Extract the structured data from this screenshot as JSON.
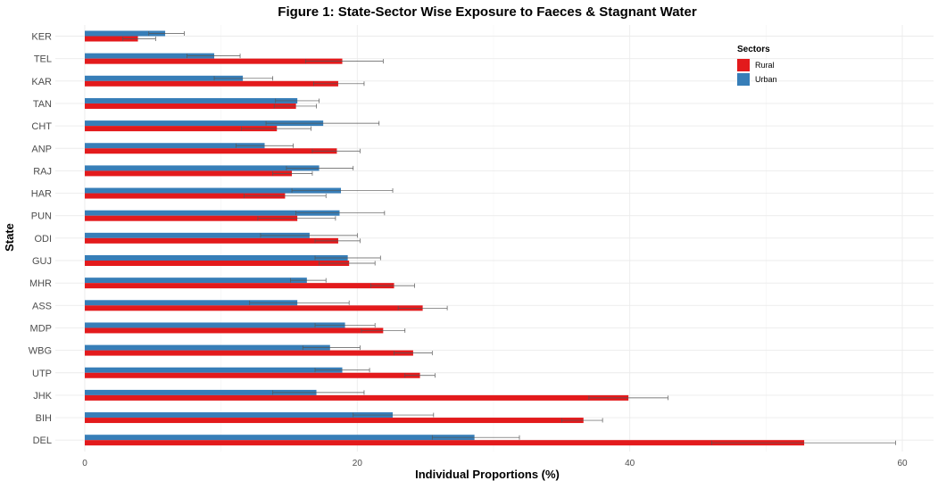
{
  "chart_data": {
    "type": "bar",
    "orientation": "horizontal",
    "title": "Figure 1: State-Sector Wise Exposure to Faeces & Stagnant Water",
    "xlabel": "Individual Proportions (%)",
    "ylabel": "State",
    "xlim": [
      0,
      62
    ],
    "x_ticks": [
      "0",
      "20",
      "40",
      "60"
    ],
    "x_tick_values": [
      0,
      20,
      40,
      60
    ],
    "grid": true,
    "legend": {
      "title": "Sectors",
      "placement": "top-right"
    },
    "categories": [
      "KER",
      "TEL",
      "KAR",
      "TAN",
      "CHT",
      "ANP",
      "RAJ",
      "HAR",
      "PUN",
      "ODI",
      "GUJ",
      "MHR",
      "ASS",
      "MDP",
      "WBG",
      "UTP",
      "JHK",
      "BIH",
      "DEL"
    ],
    "series": [
      {
        "name": "Rural",
        "color": "#E31A1C",
        "values": [
          3.9,
          18.9,
          18.6,
          15.5,
          14.1,
          18.5,
          15.2,
          14.7,
          15.6,
          18.6,
          19.4,
          22.7,
          24.8,
          21.9,
          24.1,
          24.6,
          39.9,
          36.6,
          52.8
        ],
        "err_low": [
          2.8,
          16.2,
          16.8,
          13.9,
          11.5,
          16.7,
          13.8,
          11.7,
          12.7,
          16.9,
          17.2,
          21.0,
          23.0,
          20.3,
          22.7,
          23.5,
          37.0,
          35.0,
          46.0
        ],
        "err_high": [
          5.2,
          21.9,
          20.5,
          17.0,
          16.6,
          20.2,
          16.7,
          17.7,
          18.4,
          20.2,
          21.3,
          24.2,
          26.6,
          23.5,
          25.5,
          25.7,
          42.8,
          38.0,
          59.5
        ]
      },
      {
        "name": "Urban",
        "color": "#377EB8",
        "values": [
          5.9,
          9.5,
          11.6,
          15.6,
          17.5,
          13.2,
          17.2,
          18.8,
          18.7,
          16.5,
          19.3,
          16.3,
          15.6,
          19.1,
          18.0,
          18.9,
          17.0,
          22.6,
          28.6
        ],
        "err_low": [
          4.7,
          7.5,
          9.5,
          14.0,
          13.3,
          11.1,
          14.8,
          15.2,
          15.5,
          12.9,
          16.9,
          15.1,
          12.1,
          16.9,
          16.0,
          16.9,
          13.8,
          19.7,
          25.5
        ],
        "err_high": [
          7.3,
          11.4,
          13.8,
          17.2,
          21.6,
          15.3,
          19.7,
          22.6,
          22.0,
          20.0,
          21.7,
          17.7,
          19.4,
          21.3,
          20.2,
          20.9,
          20.5,
          25.6,
          31.9
        ]
      }
    ]
  }
}
